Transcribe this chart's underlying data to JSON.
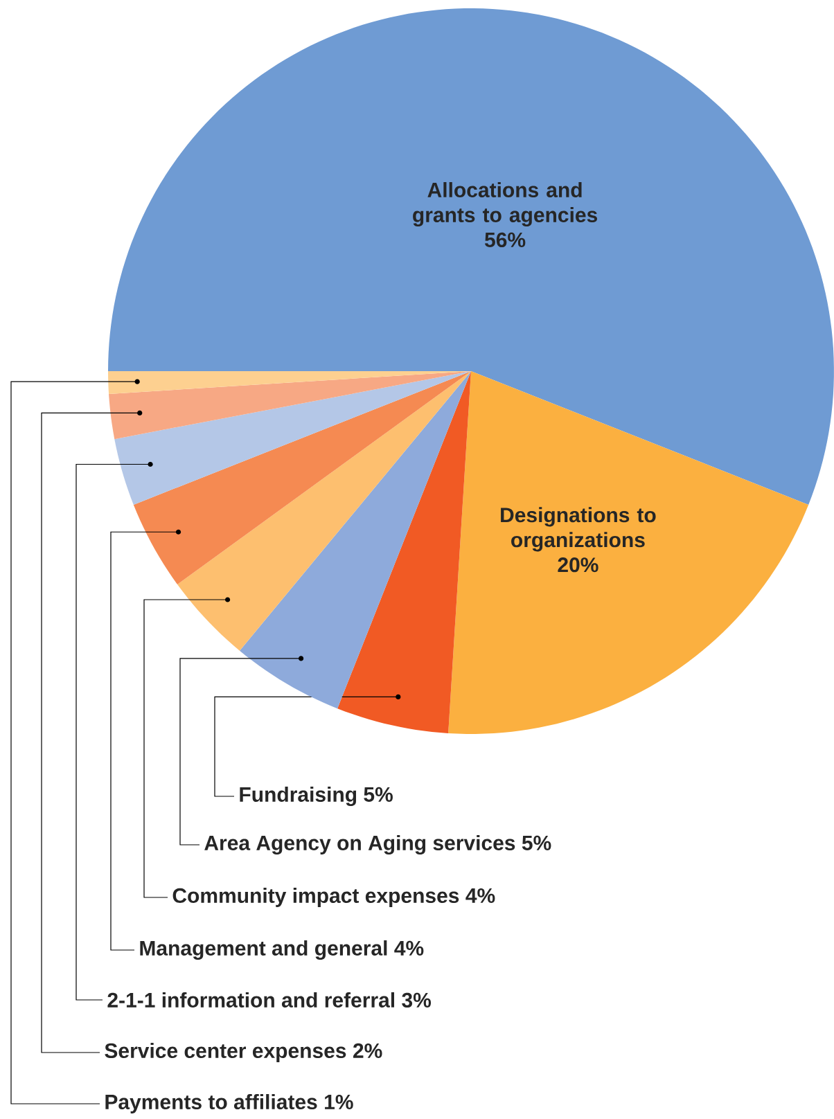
{
  "chart_data": {
    "type": "pie",
    "categories": [
      "Allocations and grants to agencies",
      "Designations to organizations",
      "Fundraising",
      "Area Agency on Aging services",
      "Community impact expenses",
      "Management and general",
      "2-1-1 information and referral",
      "Service center expenses",
      "Payments to affiliates"
    ],
    "values": [
      56,
      20,
      5,
      5,
      4,
      4,
      3,
      2,
      1
    ],
    "value_labels": [
      "56%",
      "20%",
      "5%",
      "5%",
      "4%",
      "4%",
      "3%",
      "2%",
      "1%"
    ],
    "colors": [
      "#6f9bd3",
      "#fbb040",
      "#f15a24",
      "#8eaadb",
      "#fdbf6f",
      "#f58a52",
      "#b4c7e7",
      "#f7a884",
      "#fdd090"
    ]
  }
}
